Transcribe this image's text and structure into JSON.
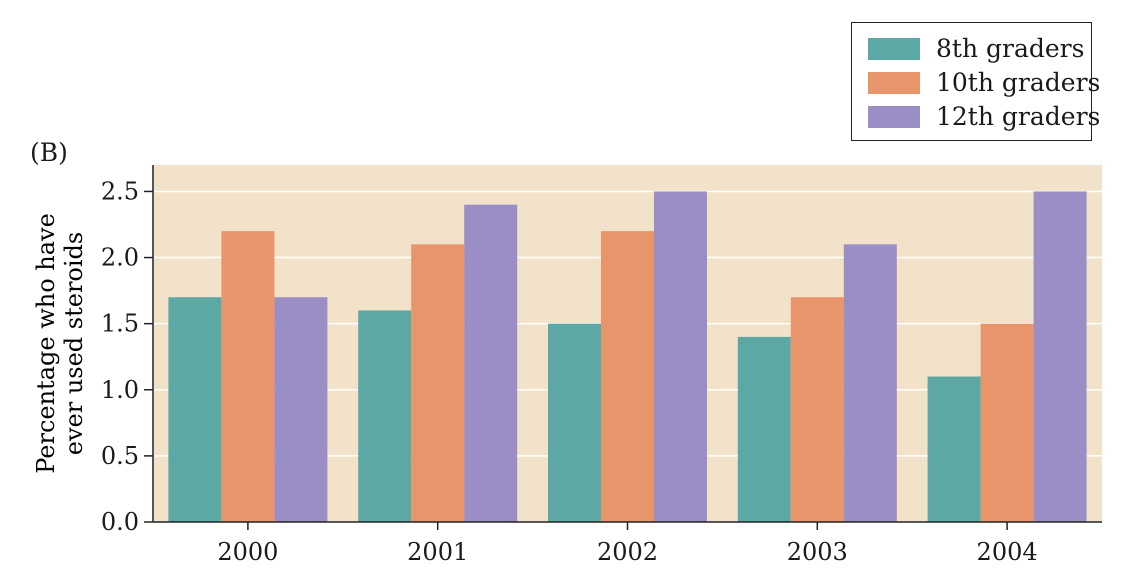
{
  "chart_data": {
    "type": "bar",
    "panel_label": "(B)",
    "title": "",
    "xlabel": "",
    "ylabel_lines": [
      "Percentage who have",
      "ever used steroids"
    ],
    "categories": [
      "2000",
      "2001",
      "2002",
      "2003",
      "2004"
    ],
    "series": [
      {
        "name": "8th graders",
        "color": "#5ba8a5",
        "values": [
          1.7,
          1.6,
          1.5,
          1.4,
          1.1
        ]
      },
      {
        "name": "10th graders",
        "color": "#e8956b",
        "values": [
          2.2,
          2.1,
          2.2,
          1.7,
          1.5
        ]
      },
      {
        "name": "12th graders",
        "color": "#9b8ec4",
        "values": [
          1.7,
          2.4,
          2.5,
          2.1,
          2.5
        ]
      }
    ],
    "yticks": [
      "0.0",
      "0.5",
      "1.0",
      "1.5",
      "2.0",
      "2.5"
    ],
    "ylim": [
      0,
      2.7
    ],
    "grid": true,
    "plot_background": "#f1e2c9",
    "legend_position": "top-right"
  }
}
